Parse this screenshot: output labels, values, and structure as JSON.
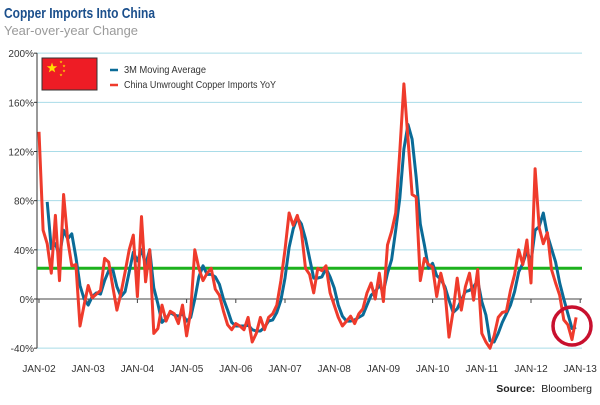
{
  "chart_data": {
    "type": "line",
    "title": "Copper Imports Into China",
    "subtitle": "Year-over-year Change",
    "source_label": "Source:",
    "source_value": "Bloomberg",
    "ylim": [
      -40,
      200
    ],
    "y_ticks": [
      "-40%",
      "0%",
      "40%",
      "80%",
      "120%",
      "160%",
      "200%"
    ],
    "y_tick_values": [
      -40,
      0,
      40,
      80,
      120,
      160,
      200
    ],
    "x_ticks": [
      "JAN-02",
      "JAN-03",
      "JAN-04",
      "JAN-05",
      "JAN-06",
      "JAN-07",
      "JAN-08",
      "JAN-09",
      "JAN-10",
      "JAN-11",
      "JAN-12",
      "JAN-13"
    ],
    "x_start": "2002-01",
    "x_frequency": "monthly",
    "grid": true,
    "legend_position": "top-left",
    "reference_line": {
      "value": 25,
      "color": "#1db11d"
    },
    "highlight_circle": {
      "date": "2012-11",
      "color": "#c8102e"
    },
    "series": [
      {
        "name": "3M Moving Average",
        "color": "#0a6b97",
        "start": "2002-03",
        "values": [
          79,
          41,
          45,
          35,
          56,
          49,
          53,
          34,
          11,
          0,
          -5,
          2,
          5,
          4,
          15,
          23,
          24,
          10,
          2,
          6,
          22,
          38,
          31,
          40,
          28,
          40,
          9,
          -4,
          -19,
          -16,
          -11,
          -13,
          -14,
          -12,
          -18,
          -15,
          0,
          18,
          27,
          20,
          20,
          18,
          12,
          0,
          -9,
          -19,
          -22,
          -22,
          -22,
          -21,
          -25,
          -26,
          -26,
          -23,
          -18,
          -17,
          -11,
          -1,
          17,
          42,
          57,
          66,
          61,
          49,
          33,
          17,
          17,
          18,
          25,
          18,
          9,
          -5,
          -14,
          -18,
          -18,
          -17,
          -15,
          -13,
          -5,
          3,
          6,
          11,
          6,
          21,
          32,
          56,
          82,
          122,
          142,
          130,
          99,
          61,
          44,
          25,
          29,
          19,
          16,
          10,
          -1,
          -11,
          -8,
          -1,
          6,
          7,
          10,
          15,
          -2,
          -13,
          -34,
          -35,
          -28,
          -19,
          -12,
          -5,
          6,
          22,
          29,
          39,
          30,
          56,
          59,
          70,
          52,
          41,
          30,
          13,
          0,
          -12,
          -24,
          -23
        ]
      },
      {
        "name": "China Unwrought Copper Imports YoY",
        "color": "#ef3b2c",
        "start": "2002-01",
        "values": [
          136,
          56,
          45,
          21,
          68,
          15,
          85,
          48,
          27,
          28,
          -22,
          -5,
          11,
          1,
          4,
          7,
          33,
          30,
          10,
          -9,
          5,
          22,
          40,
          52,
          2,
          67,
          14,
          40,
          -28,
          -24,
          -5,
          -18,
          -10,
          -12,
          -20,
          -5,
          -30,
          -10,
          40,
          25,
          15,
          21,
          25,
          8,
          3,
          -10,
          -21,
          -25,
          -20,
          -22,
          -25,
          -15,
          -35,
          -28,
          -15,
          -25,
          -15,
          -12,
          -5,
          15,
          40,
          70,
          60,
          68,
          55,
          25,
          20,
          5,
          25,
          23,
          27,
          5,
          -5,
          -15,
          -22,
          -18,
          -14,
          -20,
          -12,
          -8,
          5,
          13,
          0,
          21,
          -2,
          44,
          55,
          70,
          120,
          175,
          130,
          85,
          83,
          15,
          33,
          28,
          26,
          2,
          21,
          7,
          -31,
          -10,
          17,
          -9,
          10,
          21,
          -1,
          24,
          -28,
          -35,
          -40,
          -30,
          -15,
          -11,
          -10,
          7,
          20,
          40,
          28,
          48,
          13,
          106,
          58,
          45,
          54,
          24,
          13,
          3,
          -17,
          -21,
          -33,
          -15
        ]
      }
    ]
  },
  "flag": {
    "icon": "china-flag-icon",
    "color": "#ee1c25",
    "star_color": "#ffde00"
  }
}
